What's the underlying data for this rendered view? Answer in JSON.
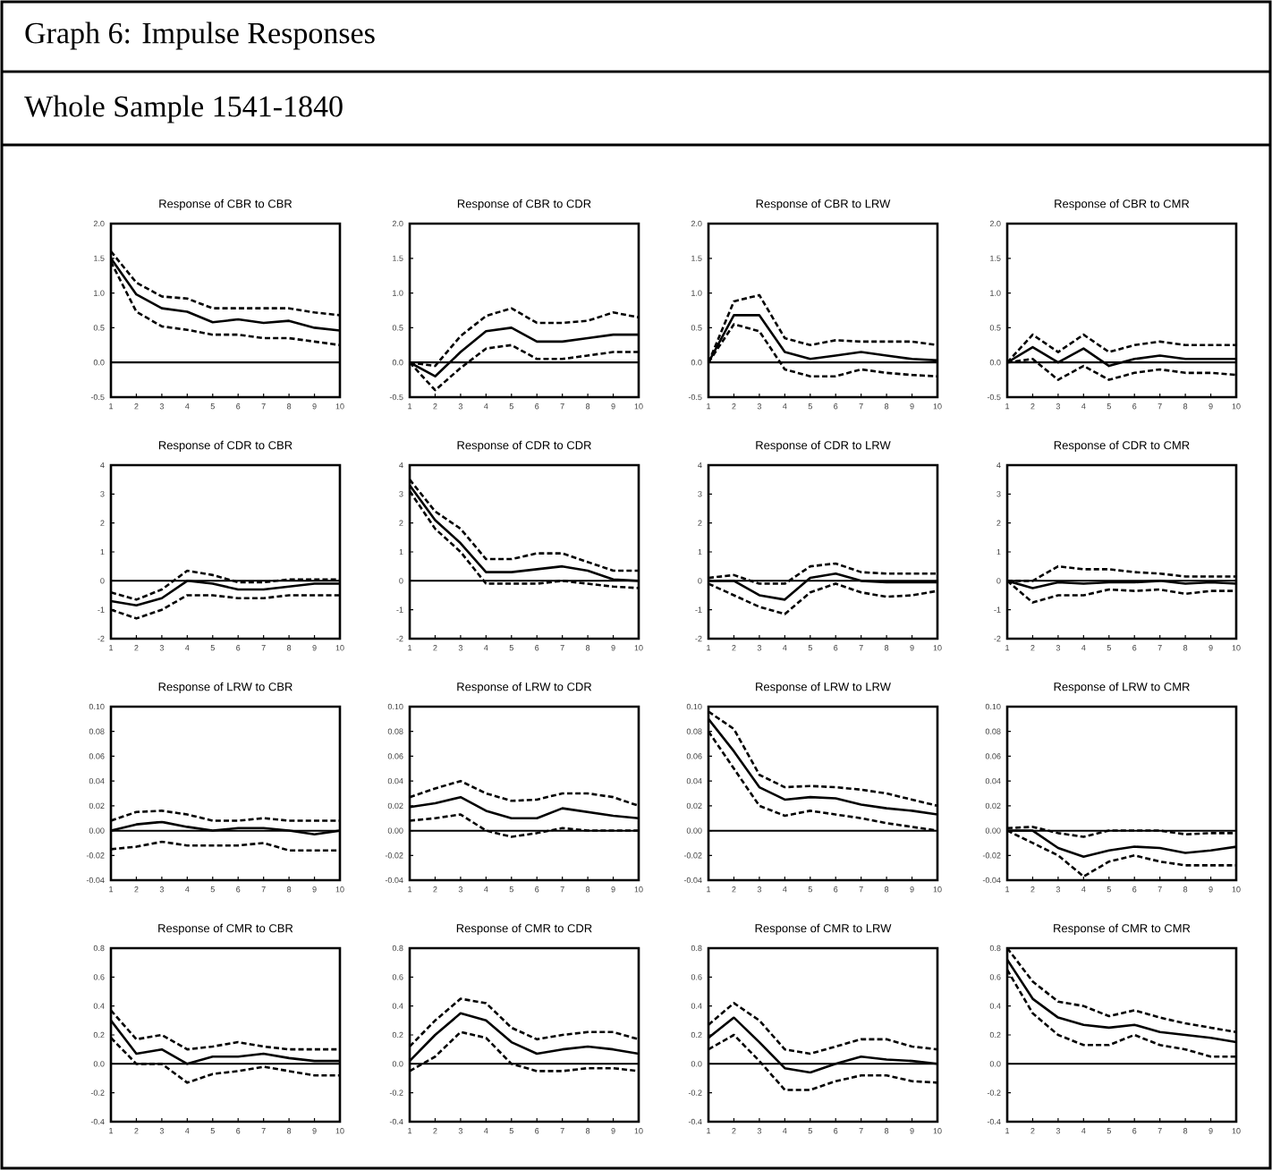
{
  "chart_data": [
    {
      "type": "other",
      "title": "Graph 6: Impulse Responses",
      "subtitle": "Whole Sample 1541-1840"
    },
    {
      "type": "line",
      "title": "Response of CBR to CBR",
      "x": [
        1,
        2,
        3,
        4,
        5,
        6,
        7,
        8,
        9,
        10
      ],
      "xlim": [
        1,
        10
      ],
      "xticks": [
        1,
        2,
        3,
        4,
        5,
        6,
        7,
        8,
        9,
        10
      ],
      "ylim": [
        -0.5,
        2.0
      ],
      "yticks": [
        -0.5,
        {
          "value": 0,
          "label": "0.0"
        },
        0.5,
        {
          "value": 1,
          "label": "1.0"
        },
        1.5,
        {
          "value": 2,
          "label": "2.0"
        }
      ],
      "ref_lines": [
        {
          "axis": "y",
          "value": 0,
          "color": "#000000"
        }
      ],
      "series": [
        {
          "color": "#000000",
          "line_style": "solid",
          "values": [
            1.5,
            0.98,
            0.78,
            0.73,
            0.58,
            0.62,
            0.57,
            0.6,
            0.5,
            0.46
          ]
        },
        {
          "color": "#000000",
          "line_style": "dashed",
          "values": [
            1.6,
            1.15,
            0.95,
            0.92,
            0.78,
            0.78,
            0.78,
            0.78,
            0.72,
            0.68
          ]
        },
        {
          "color": "#000000",
          "line_style": "dashed",
          "values": [
            1.45,
            0.73,
            0.52,
            0.47,
            0.4,
            0.4,
            0.35,
            0.35,
            0.3,
            0.25
          ]
        }
      ]
    },
    {
      "type": "line",
      "title": "Response of CBR to CDR",
      "x": [
        1,
        2,
        3,
        4,
        5,
        6,
        7,
        8,
        9,
        10
      ],
      "xlim": [
        1,
        10
      ],
      "xticks": [
        1,
        2,
        3,
        4,
        5,
        6,
        7,
        8,
        9,
        10
      ],
      "ylim": [
        -0.5,
        2.0
      ],
      "yticks": [
        -0.5,
        {
          "value": 0,
          "label": "0.0"
        },
        0.5,
        {
          "value": 1,
          "label": "1.0"
        },
        1.5,
        {
          "value": 2,
          "label": "2.0"
        }
      ],
      "ref_lines": [
        {
          "axis": "y",
          "value": 0,
          "color": "#000000"
        }
      ],
      "series": [
        {
          "color": "#000000",
          "line_style": "solid",
          "values": [
            0,
            -0.2,
            0.15,
            0.45,
            0.5,
            0.3,
            0.3,
            0.35,
            0.4,
            0.4
          ]
        },
        {
          "color": "#000000",
          "line_style": "dashed",
          "values": [
            0,
            -0.05,
            0.38,
            0.67,
            0.78,
            0.57,
            0.57,
            0.6,
            0.72,
            0.65
          ]
        },
        {
          "color": "#000000",
          "line_style": "dashed",
          "values": [
            0,
            -0.4,
            -0.08,
            0.2,
            0.25,
            0.05,
            0.05,
            0.1,
            0.15,
            0.15
          ]
        }
      ]
    },
    {
      "type": "line",
      "title": "Response of CBR to LRW",
      "x": [
        1,
        2,
        3,
        4,
        5,
        6,
        7,
        8,
        9,
        10
      ],
      "xlim": [
        1,
        10
      ],
      "xticks": [
        1,
        2,
        3,
        4,
        5,
        6,
        7,
        8,
        9,
        10
      ],
      "ylim": [
        -0.5,
        2.0
      ],
      "yticks": [
        -0.5,
        {
          "value": 0,
          "label": "0.0"
        },
        0.5,
        {
          "value": 1,
          "label": "1.0"
        },
        1.5,
        {
          "value": 2,
          "label": "2.0"
        }
      ],
      "ref_lines": [
        {
          "axis": "y",
          "value": 0,
          "color": "#000000"
        }
      ],
      "series": [
        {
          "color": "#000000",
          "line_style": "solid",
          "values": [
            0,
            0.68,
            0.68,
            0.15,
            0.05,
            0.1,
            0.15,
            0.1,
            0.05,
            0.03
          ]
        },
        {
          "color": "#000000",
          "line_style": "dashed",
          "values": [
            0,
            0.88,
            0.97,
            0.35,
            0.25,
            0.32,
            0.3,
            0.3,
            0.3,
            0.25
          ]
        },
        {
          "color": "#000000",
          "line_style": "dashed",
          "values": [
            0,
            0.55,
            0.45,
            -0.1,
            -0.2,
            -0.2,
            -0.1,
            -0.15,
            -0.18,
            -0.2
          ]
        }
      ]
    },
    {
      "type": "line",
      "title": "Response of CBR to CMR",
      "x": [
        1,
        2,
        3,
        4,
        5,
        6,
        7,
        8,
        9,
        10
      ],
      "xlim": [
        1,
        10
      ],
      "xticks": [
        1,
        2,
        3,
        4,
        5,
        6,
        7,
        8,
        9,
        10
      ],
      "ylim": [
        -0.5,
        2.0
      ],
      "yticks": [
        -0.5,
        {
          "value": 0,
          "label": "0.0"
        },
        0.5,
        {
          "value": 1,
          "label": "1.0"
        },
        1.5,
        {
          "value": 2,
          "label": "2.0"
        }
      ],
      "ref_lines": [
        {
          "axis": "y",
          "value": 0,
          "color": "#000000"
        }
      ],
      "series": [
        {
          "color": "#000000",
          "line_style": "solid",
          "values": [
            0,
            0.22,
            0.0,
            0.2,
            -0.05,
            0.05,
            0.1,
            0.05,
            0.05,
            0.05
          ]
        },
        {
          "color": "#000000",
          "line_style": "dashed",
          "values": [
            0,
            0.4,
            0.15,
            0.4,
            0.15,
            0.25,
            0.3,
            0.25,
            0.25,
            0.25
          ]
        },
        {
          "color": "#000000",
          "line_style": "dashed",
          "values": [
            0,
            0.05,
            -0.25,
            -0.05,
            -0.25,
            -0.15,
            -0.1,
            -0.15,
            -0.15,
            -0.18
          ]
        }
      ]
    },
    {
      "type": "line",
      "title": "Response of CDR to CBR",
      "x": [
        1,
        2,
        3,
        4,
        5,
        6,
        7,
        8,
        9,
        10
      ],
      "xlim": [
        1,
        10
      ],
      "xticks": [
        1,
        2,
        3,
        4,
        5,
        6,
        7,
        8,
        9,
        10
      ],
      "ylim": [
        -2,
        4
      ],
      "yticks": [
        -2,
        -1,
        0,
        1,
        2,
        3,
        4
      ],
      "ref_lines": [
        {
          "axis": "y",
          "value": 0,
          "color": "#000000"
        }
      ],
      "series": [
        {
          "color": "#000000",
          "line_style": "solid",
          "values": [
            -0.7,
            -0.85,
            -0.6,
            0.0,
            -0.1,
            -0.3,
            -0.3,
            -0.2,
            -0.1,
            -0.1
          ]
        },
        {
          "color": "#000000",
          "line_style": "dashed",
          "values": [
            -0.4,
            -0.65,
            -0.3,
            0.35,
            0.2,
            -0.05,
            -0.05,
            0.05,
            0.05,
            0.05
          ]
        },
        {
          "color": "#000000",
          "line_style": "dashed",
          "values": [
            -1.0,
            -1.3,
            -1.0,
            -0.5,
            -0.5,
            -0.6,
            -0.6,
            -0.5,
            -0.5,
            -0.5
          ]
        }
      ]
    },
    {
      "type": "line",
      "title": "Response of CDR to CDR",
      "x": [
        1,
        2,
        3,
        4,
        5,
        6,
        7,
        8,
        9,
        10
      ],
      "xlim": [
        1,
        10
      ],
      "xticks": [
        1,
        2,
        3,
        4,
        5,
        6,
        7,
        8,
        9,
        10
      ],
      "ylim": [
        -2,
        4
      ],
      "yticks": [
        -2,
        -1,
        0,
        1,
        2,
        3,
        4
      ],
      "ref_lines": [
        {
          "axis": "y",
          "value": 0,
          "color": "#000000"
        }
      ],
      "series": [
        {
          "color": "#000000",
          "line_style": "solid",
          "values": [
            3.3,
            2.1,
            1.3,
            0.3,
            0.3,
            0.4,
            0.5,
            0.35,
            0.05,
            0.0
          ]
        },
        {
          "color": "#000000",
          "line_style": "dashed",
          "values": [
            3.5,
            2.4,
            1.8,
            0.75,
            0.75,
            0.95,
            0.95,
            0.65,
            0.35,
            0.35
          ]
        },
        {
          "color": "#000000",
          "line_style": "dashed",
          "values": [
            3.1,
            1.8,
            1.0,
            -0.1,
            -0.1,
            -0.1,
            0.0,
            -0.1,
            -0.2,
            -0.25
          ]
        }
      ]
    },
    {
      "type": "line",
      "title": "Response of CDR to LRW",
      "x": [
        1,
        2,
        3,
        4,
        5,
        6,
        7,
        8,
        9,
        10
      ],
      "xlim": [
        1,
        10
      ],
      "xticks": [
        1,
        2,
        3,
        4,
        5,
        6,
        7,
        8,
        9,
        10
      ],
      "ylim": [
        -2,
        4
      ],
      "yticks": [
        -2,
        -1,
        0,
        1,
        2,
        3,
        4
      ],
      "ref_lines": [
        {
          "axis": "y",
          "value": 0,
          "color": "#000000"
        }
      ],
      "series": [
        {
          "color": "#000000",
          "line_style": "solid",
          "values": [
            0,
            0,
            -0.5,
            -0.65,
            0.1,
            0.25,
            0.0,
            -0.05,
            -0.05,
            -0.05
          ]
        },
        {
          "color": "#000000",
          "line_style": "dashed",
          "values": [
            0.1,
            0.2,
            -0.1,
            -0.1,
            0.5,
            0.6,
            0.3,
            0.25,
            0.25,
            0.25
          ]
        },
        {
          "color": "#000000",
          "line_style": "dashed",
          "values": [
            -0.1,
            -0.5,
            -0.9,
            -1.15,
            -0.4,
            -0.1,
            -0.4,
            -0.55,
            -0.5,
            -0.35
          ]
        }
      ]
    },
    {
      "type": "line",
      "title": "Response of CDR to CMR",
      "x": [
        1,
        2,
        3,
        4,
        5,
        6,
        7,
        8,
        9,
        10
      ],
      "xlim": [
        1,
        10
      ],
      "xticks": [
        1,
        2,
        3,
        4,
        5,
        6,
        7,
        8,
        9,
        10
      ],
      "ylim": [
        -2,
        4
      ],
      "yticks": [
        -2,
        -1,
        0,
        1,
        2,
        3,
        4
      ],
      "ref_lines": [
        {
          "axis": "y",
          "value": 0,
          "color": "#000000"
        }
      ],
      "series": [
        {
          "color": "#000000",
          "line_style": "solid",
          "values": [
            0,
            -0.25,
            -0.05,
            -0.1,
            -0.05,
            -0.05,
            0.0,
            -0.1,
            -0.05,
            -0.1
          ]
        },
        {
          "color": "#000000",
          "line_style": "dashed",
          "values": [
            0,
            0,
            0.5,
            0.4,
            0.4,
            0.3,
            0.25,
            0.15,
            0.15,
            0.15
          ]
        },
        {
          "color": "#000000",
          "line_style": "dashed",
          "values": [
            0,
            -0.75,
            -0.5,
            -0.5,
            -0.3,
            -0.35,
            -0.3,
            -0.45,
            -0.35,
            -0.35
          ]
        }
      ]
    },
    {
      "type": "line",
      "title": "Response of LRW to CBR",
      "x": [
        1,
        2,
        3,
        4,
        5,
        6,
        7,
        8,
        9,
        10
      ],
      "xlim": [
        1,
        10
      ],
      "xticks": [
        1,
        2,
        3,
        4,
        5,
        6,
        7,
        8,
        9,
        10
      ],
      "ylim": [
        -0.04,
        0.1
      ],
      "yticks": [
        -0.04,
        -0.02,
        {
          "value": 0,
          "label": "0.00"
        },
        0.02,
        0.04,
        0.06,
        0.08,
        {
          "value": 0.1,
          "label": "0.10"
        }
      ],
      "ref_lines": [
        {
          "axis": "y",
          "value": 0,
          "color": "#000000"
        }
      ],
      "series": [
        {
          "color": "#000000",
          "line_style": "solid",
          "values": [
            0.0,
            0.005,
            0.007,
            0.003,
            0.0,
            0.002,
            0.002,
            0.0,
            -0.003,
            0.0
          ]
        },
        {
          "color": "#000000",
          "line_style": "dashed",
          "values": [
            0.008,
            0.015,
            0.016,
            0.013,
            0.008,
            0.008,
            0.01,
            0.008,
            0.008,
            0.008
          ]
        },
        {
          "color": "#000000",
          "line_style": "dashed",
          "values": [
            -0.015,
            -0.013,
            -0.009,
            -0.012,
            -0.012,
            -0.012,
            -0.01,
            -0.016,
            -0.016,
            -0.016
          ]
        }
      ]
    },
    {
      "type": "line",
      "title": "Response of LRW to CDR",
      "x": [
        1,
        2,
        3,
        4,
        5,
        6,
        7,
        8,
        9,
        10
      ],
      "xlim": [
        1,
        10
      ],
      "xticks": [
        1,
        2,
        3,
        4,
        5,
        6,
        7,
        8,
        9,
        10
      ],
      "ylim": [
        -0.04,
        0.1
      ],
      "yticks": [
        -0.04,
        -0.02,
        {
          "value": 0,
          "label": "0.00"
        },
        0.02,
        0.04,
        0.06,
        0.08,
        {
          "value": 0.1,
          "label": "0.10"
        }
      ],
      "ref_lines": [
        {
          "axis": "y",
          "value": 0,
          "color": "#000000"
        }
      ],
      "series": [
        {
          "color": "#000000",
          "line_style": "solid",
          "values": [
            0.019,
            0.022,
            0.027,
            0.016,
            0.01,
            0.01,
            0.018,
            0.015,
            0.012,
            0.01
          ]
        },
        {
          "color": "#000000",
          "line_style": "dashed",
          "values": [
            0.027,
            0.034,
            0.04,
            0.03,
            0.024,
            0.025,
            0.03,
            0.03,
            0.027,
            0.02
          ]
        },
        {
          "color": "#000000",
          "line_style": "dashed",
          "values": [
            0.008,
            0.01,
            0.013,
            0.0,
            -0.005,
            -0.002,
            0.002,
            0.0,
            0.0,
            0.0
          ]
        }
      ]
    },
    {
      "type": "line",
      "title": "Response of LRW to LRW",
      "x": [
        1,
        2,
        3,
        4,
        5,
        6,
        7,
        8,
        9,
        10
      ],
      "xlim": [
        1,
        10
      ],
      "xticks": [
        1,
        2,
        3,
        4,
        5,
        6,
        7,
        8,
        9,
        10
      ],
      "ylim": [
        -0.04,
        0.1
      ],
      "yticks": [
        -0.04,
        -0.02,
        {
          "value": 0,
          "label": "0.00"
        },
        0.02,
        0.04,
        0.06,
        0.08,
        {
          "value": 0.1,
          "label": "0.10"
        }
      ],
      "ref_lines": [
        {
          "axis": "y",
          "value": 0,
          "color": "#000000"
        }
      ],
      "series": [
        {
          "color": "#000000",
          "line_style": "solid",
          "values": [
            0.09,
            0.064,
            0.035,
            0.025,
            0.027,
            0.026,
            0.021,
            0.018,
            0.016,
            0.013
          ]
        },
        {
          "color": "#000000",
          "line_style": "dashed",
          "values": [
            0.096,
            0.082,
            0.045,
            0.035,
            0.036,
            0.035,
            0.033,
            0.03,
            0.025,
            0.02
          ]
        },
        {
          "color": "#000000",
          "line_style": "dashed",
          "values": [
            0.08,
            0.05,
            0.02,
            0.012,
            0.016,
            0.013,
            0.01,
            0.006,
            0.003,
            0.0
          ]
        }
      ]
    },
    {
      "type": "line",
      "title": "Response of LRW to CMR",
      "x": [
        1,
        2,
        3,
        4,
        5,
        6,
        7,
        8,
        9,
        10
      ],
      "xlim": [
        1,
        10
      ],
      "xticks": [
        1,
        2,
        3,
        4,
        5,
        6,
        7,
        8,
        9,
        10
      ],
      "ylim": [
        -0.04,
        0.1
      ],
      "yticks": [
        -0.04,
        -0.02,
        {
          "value": 0,
          "label": "0.00"
        },
        0.02,
        0.04,
        0.06,
        0.08,
        {
          "value": 0.1,
          "label": "0.10"
        }
      ],
      "ref_lines": [
        {
          "axis": "y",
          "value": 0,
          "color": "#000000"
        }
      ],
      "series": [
        {
          "color": "#000000",
          "line_style": "solid",
          "values": [
            0,
            0,
            -0.014,
            -0.021,
            -0.016,
            -0.013,
            -0.014,
            -0.018,
            -0.016,
            -0.013
          ]
        },
        {
          "color": "#000000",
          "line_style": "dashed",
          "values": [
            0.002,
            0.003,
            -0.002,
            -0.005,
            0.0,
            0.0,
            0.0,
            -0.003,
            -0.002,
            -0.002
          ]
        },
        {
          "color": "#000000",
          "line_style": "dashed",
          "values": [
            0,
            -0.01,
            -0.02,
            -0.037,
            -0.025,
            -0.02,
            -0.025,
            -0.028,
            -0.028,
            -0.028
          ]
        }
      ]
    },
    {
      "type": "line",
      "title": "Response of CMR to CBR",
      "x": [
        1,
        2,
        3,
        4,
        5,
        6,
        7,
        8,
        9,
        10
      ],
      "xlim": [
        1,
        10
      ],
      "xticks": [
        1,
        2,
        3,
        4,
        5,
        6,
        7,
        8,
        9,
        10
      ],
      "ylim": [
        -0.4,
        0.8
      ],
      "yticks": [
        -0.4,
        -0.2,
        {
          "value": 0,
          "label": "0.0"
        },
        0.2,
        0.4,
        0.6,
        0.8
      ],
      "ref_lines": [
        {
          "axis": "y",
          "value": 0,
          "color": "#000000"
        }
      ],
      "series": [
        {
          "color": "#000000",
          "line_style": "solid",
          "values": [
            0.3,
            0.07,
            0.1,
            0.0,
            0.05,
            0.05,
            0.07,
            0.04,
            0.02,
            0.02
          ]
        },
        {
          "color": "#000000",
          "line_style": "dashed",
          "values": [
            0.37,
            0.17,
            0.2,
            0.1,
            0.12,
            0.15,
            0.12,
            0.1,
            0.1,
            0.1
          ]
        },
        {
          "color": "#000000",
          "line_style": "dashed",
          "values": [
            0.18,
            0.0,
            0.0,
            -0.13,
            -0.07,
            -0.05,
            -0.02,
            -0.05,
            -0.08,
            -0.08
          ]
        }
      ]
    },
    {
      "type": "line",
      "title": "Response of CMR to CDR",
      "x": [
        1,
        2,
        3,
        4,
        5,
        6,
        7,
        8,
        9,
        10
      ],
      "xlim": [
        1,
        10
      ],
      "xticks": [
        1,
        2,
        3,
        4,
        5,
        6,
        7,
        8,
        9,
        10
      ],
      "ylim": [
        -0.4,
        0.8
      ],
      "yticks": [
        -0.4,
        -0.2,
        {
          "value": 0,
          "label": "0.0"
        },
        0.2,
        0.4,
        0.6,
        0.8
      ],
      "ref_lines": [
        {
          "axis": "y",
          "value": 0,
          "color": "#000000"
        }
      ],
      "series": [
        {
          "color": "#000000",
          "line_style": "solid",
          "values": [
            0.02,
            0.2,
            0.35,
            0.3,
            0.15,
            0.07,
            0.1,
            0.12,
            0.1,
            0.07
          ]
        },
        {
          "color": "#000000",
          "line_style": "dashed",
          "values": [
            0.12,
            0.3,
            0.45,
            0.42,
            0.25,
            0.17,
            0.2,
            0.22,
            0.22,
            0.17
          ]
        },
        {
          "color": "#000000",
          "line_style": "dashed",
          "values": [
            -0.05,
            0.05,
            0.22,
            0.18,
            0.0,
            -0.05,
            -0.05,
            -0.03,
            -0.03,
            -0.05
          ]
        }
      ]
    },
    {
      "type": "line",
      "title": "Response of CMR to LRW",
      "x": [
        1,
        2,
        3,
        4,
        5,
        6,
        7,
        8,
        9,
        10
      ],
      "xlim": [
        1,
        10
      ],
      "xticks": [
        1,
        2,
        3,
        4,
        5,
        6,
        7,
        8,
        9,
        10
      ],
      "ylim": [
        -0.4,
        0.8
      ],
      "yticks": [
        -0.4,
        -0.2,
        {
          "value": 0,
          "label": "0.0"
        },
        0.2,
        0.4,
        0.6,
        0.8
      ],
      "ref_lines": [
        {
          "axis": "y",
          "value": 0,
          "color": "#000000"
        }
      ],
      "series": [
        {
          "color": "#000000",
          "line_style": "solid",
          "values": [
            0.18,
            0.32,
            0.15,
            -0.03,
            -0.06,
            0.0,
            0.05,
            0.03,
            0.02,
            0.0
          ]
        },
        {
          "color": "#000000",
          "line_style": "dashed",
          "values": [
            0.27,
            0.42,
            0.3,
            0.1,
            0.07,
            0.12,
            0.17,
            0.17,
            0.12,
            0.1
          ]
        },
        {
          "color": "#000000",
          "line_style": "dashed",
          "values": [
            0.1,
            0.2,
            0.02,
            -0.18,
            -0.18,
            -0.12,
            -0.08,
            -0.08,
            -0.12,
            -0.13
          ]
        }
      ]
    },
    {
      "type": "line",
      "title": "Response of CMR to CMR",
      "x": [
        1,
        2,
        3,
        4,
        5,
        6,
        7,
        8,
        9,
        10
      ],
      "xlim": [
        1,
        10
      ],
      "xticks": [
        1,
        2,
        3,
        4,
        5,
        6,
        7,
        8,
        9,
        10
      ],
      "ylim": [
        -0.4,
        0.8
      ],
      "yticks": [
        -0.4,
        -0.2,
        {
          "value": 0,
          "label": "0.0"
        },
        0.2,
        0.4,
        0.6,
        0.8
      ],
      "ref_lines": [
        {
          "axis": "y",
          "value": 0,
          "color": "#000000"
        }
      ],
      "series": [
        {
          "color": "#000000",
          "line_style": "solid",
          "values": [
            0.72,
            0.45,
            0.32,
            0.27,
            0.25,
            0.27,
            0.22,
            0.2,
            0.18,
            0.15
          ]
        },
        {
          "color": "#000000",
          "line_style": "dashed",
          "values": [
            0.8,
            0.57,
            0.43,
            0.4,
            0.33,
            0.37,
            0.32,
            0.28,
            0.25,
            0.22
          ]
        },
        {
          "color": "#000000",
          "line_style": "dashed",
          "values": [
            0.65,
            0.35,
            0.2,
            0.13,
            0.13,
            0.2,
            0.13,
            0.1,
            0.05,
            0.05
          ]
        }
      ]
    }
  ]
}
